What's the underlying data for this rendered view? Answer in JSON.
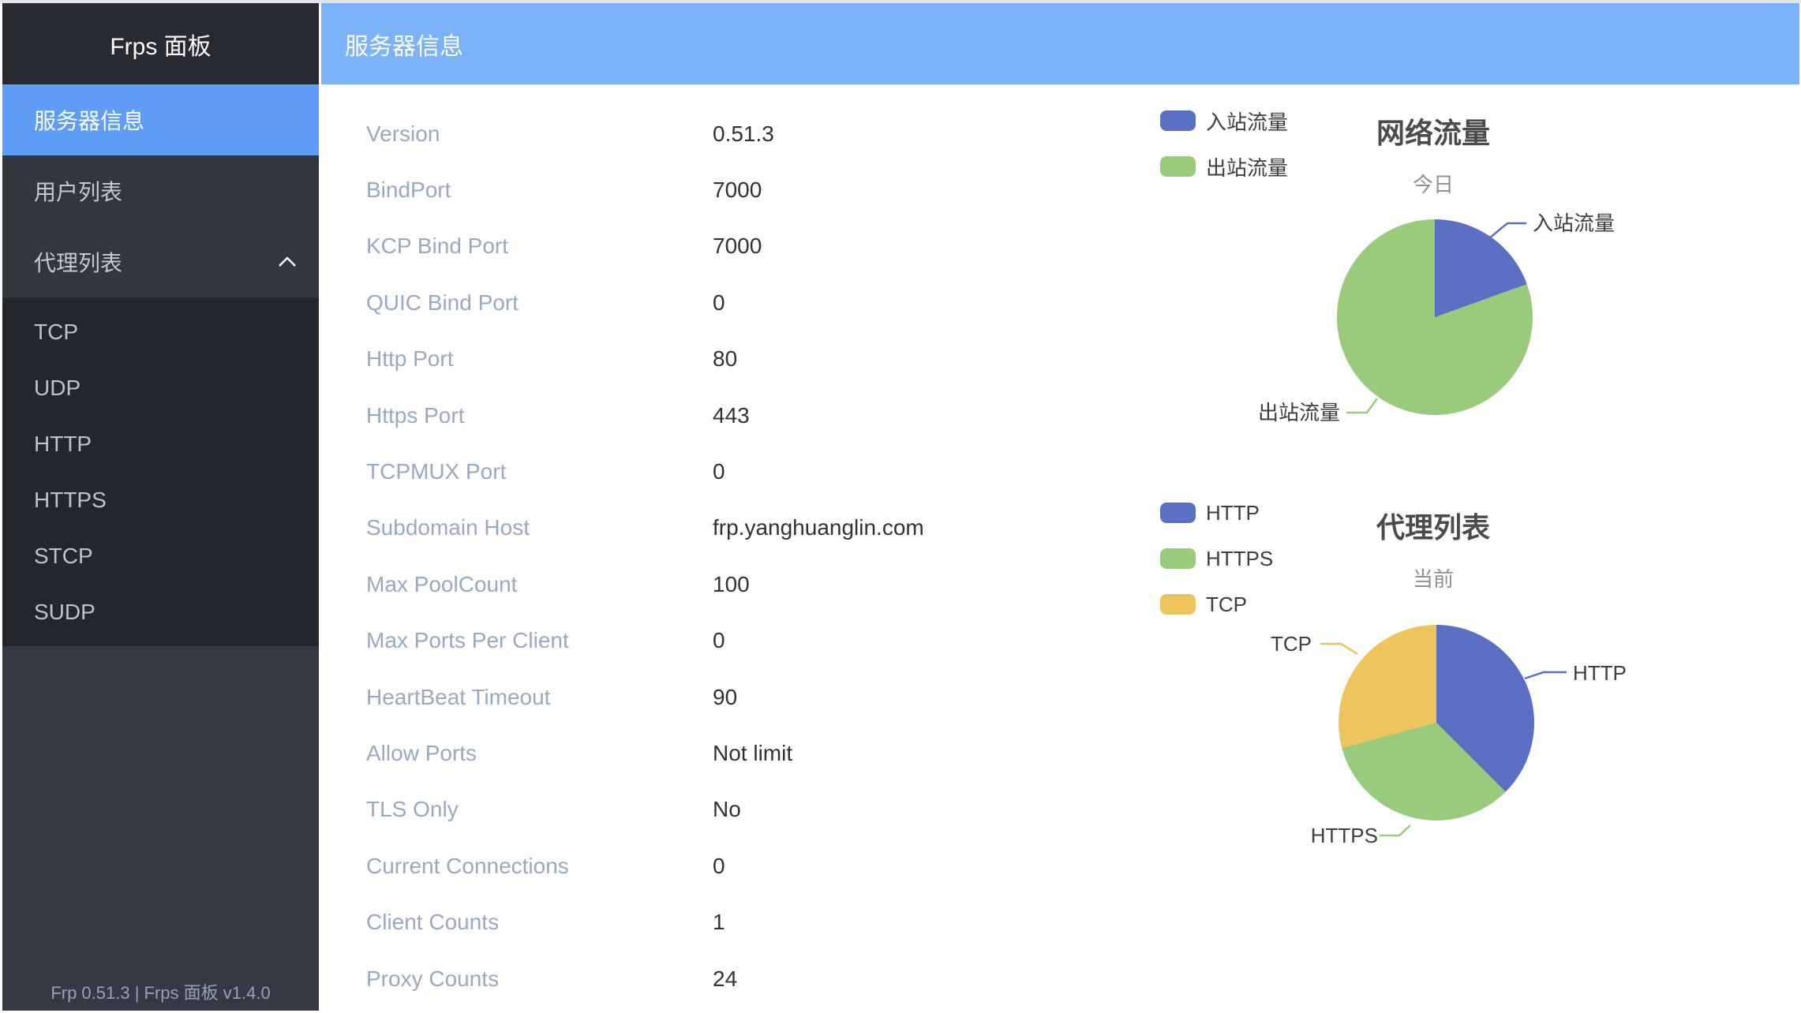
{
  "sidebar": {
    "title": "Frps 面板",
    "items": [
      {
        "label": "服务器信息",
        "state": "active"
      },
      {
        "label": "用户列表",
        "state": "normal"
      },
      {
        "label": "代理列表",
        "state": "expanded"
      }
    ],
    "submenu": [
      "TCP",
      "UDP",
      "HTTP",
      "HTTPS",
      "STCP",
      "SUDP"
    ],
    "footer": "Frp 0.51.3 | Frps 面板 v1.4.0"
  },
  "header": {
    "title": "服务器信息"
  },
  "server_info": [
    {
      "label": "Version",
      "value": "0.51.3"
    },
    {
      "label": "BindPort",
      "value": "7000"
    },
    {
      "label": "KCP Bind Port",
      "value": "7000"
    },
    {
      "label": "QUIC Bind Port",
      "value": "0"
    },
    {
      "label": "Http Port",
      "value": "80"
    },
    {
      "label": "Https Port",
      "value": "443"
    },
    {
      "label": "TCPMUX Port",
      "value": "0"
    },
    {
      "label": "Subdomain Host",
      "value": "frp.yanghuanglin.com"
    },
    {
      "label": "Max PoolCount",
      "value": "100"
    },
    {
      "label": "Max Ports Per Client",
      "value": "0"
    },
    {
      "label": "HeartBeat Timeout",
      "value": "90"
    },
    {
      "label": "Allow Ports",
      "value": "Not limit"
    },
    {
      "label": "TLS Only",
      "value": "No"
    },
    {
      "label": "Current Connections",
      "value": "0"
    },
    {
      "label": "Client Counts",
      "value": "1"
    },
    {
      "label": "Proxy Counts",
      "value": "24"
    }
  ],
  "chart_data": [
    {
      "type": "pie",
      "title": "网络流量",
      "subtitle": "今日",
      "legend_position": "top-left",
      "slices": [
        {
          "name": "入站流量",
          "percent": 19.5,
          "color": "#5b70c5"
        },
        {
          "name": "出站流量",
          "percent": 80.5,
          "color": "#9aca7c"
        }
      ]
    },
    {
      "type": "pie",
      "title": "代理列表",
      "subtitle": "当前",
      "legend_position": "top-left",
      "total": 24,
      "slices": [
        {
          "name": "HTTP",
          "value": 9,
          "percent": 37.5,
          "color": "#5b70c5"
        },
        {
          "name": "HTTPS",
          "value": 8,
          "percent": 33.3,
          "color": "#9aca7c"
        },
        {
          "name": "TCP",
          "value": 7,
          "percent": 29.2,
          "color": "#edc55c"
        }
      ]
    }
  ]
}
